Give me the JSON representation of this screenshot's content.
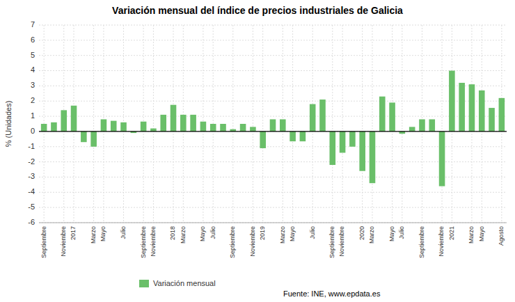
{
  "chart_data": {
    "type": "bar",
    "title": "Variación mensual del índice de precios industriales de Galicia",
    "y_label": "% (Unidades)",
    "source": "Fuente: INE, www.epdata.es",
    "categories": [
      "Septiembre",
      null,
      "Noviembre",
      "2017",
      null,
      "Marzo",
      "Mayo",
      null,
      "Julio",
      null,
      "Septiembre",
      "Noviembre",
      null,
      "2018",
      "Marzo",
      null,
      "Mayo",
      "Julio",
      null,
      "Septiembre",
      null,
      "Noviembre",
      "2019",
      null,
      "Marzo",
      "Mayo",
      null,
      "Julio",
      null,
      "Septiembre",
      "Noviembre",
      null,
      "2020",
      "Marzo",
      null,
      "Mayo",
      "Julio",
      null,
      "Septiembre",
      null,
      "Noviembre",
      "2021",
      null,
      "Marzo",
      "Mayo",
      null,
      "Agosto"
    ],
    "series": [
      {
        "name": "Variación mensual",
        "color": "#6abf69",
        "values": [
          0.5,
          0.6,
          1.4,
          1.7,
          -0.7,
          -1.0,
          0.8,
          0.7,
          0.6,
          -0.1,
          0.65,
          0.2,
          1.1,
          1.75,
          1.1,
          1.1,
          0.65,
          0.5,
          0.5,
          0.15,
          0.5,
          0.3,
          -1.1,
          0.8,
          0.8,
          -0.65,
          -0.65,
          1.8,
          2.1,
          -2.2,
          -1.4,
          -1.0,
          -2.6,
          -3.4,
          2.3,
          1.9,
          -0.15,
          0.3,
          0.8,
          0.8,
          -3.6,
          4.0,
          3.2,
          3.1,
          2.7,
          1.55,
          2.2
        ]
      }
    ],
    "ylim": [
      -6,
      7
    ],
    "yticks": [
      -6,
      -5,
      -4,
      -3,
      -2,
      -1,
      0,
      1,
      2,
      3,
      4,
      5,
      6,
      7
    ],
    "grid": true,
    "legend": "bottom"
  }
}
